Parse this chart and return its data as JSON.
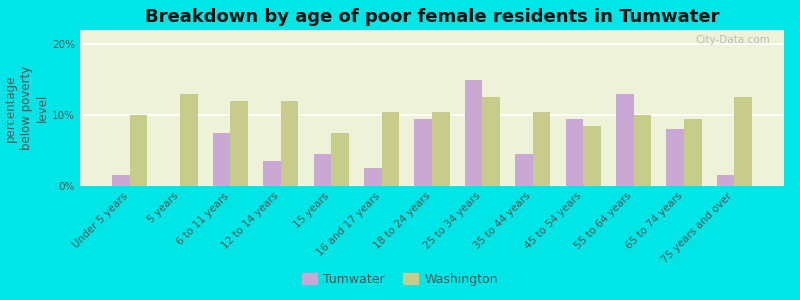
{
  "title": "Breakdown by age of poor female residents in Tumwater",
  "ylabel": "percentage\nbelow poverty\nlevel",
  "categories": [
    "Under 5 years",
    "5 years",
    "6 to 11 years",
    "12 to 14 years",
    "15 years",
    "16 and 17 years",
    "18 to 24 years",
    "25 to 34 years",
    "35 to 44 years",
    "45 to 54 years",
    "55 to 64 years",
    "65 to 74 years",
    "75 years and over"
  ],
  "tumwater": [
    1.5,
    0,
    7.5,
    3.5,
    4.5,
    2.5,
    9.5,
    15.0,
    4.5,
    9.5,
    13.0,
    8.0,
    1.5
  ],
  "washington": [
    10.0,
    13.0,
    12.0,
    12.0,
    7.5,
    10.5,
    10.5,
    12.5,
    10.5,
    8.5,
    10.0,
    9.5,
    12.5
  ],
  "tumwater_color": "#c9a8d4",
  "washington_color": "#c8cc8a",
  "bg_outer": "#00e5e5",
  "plot_bg": "#eef2d8",
  "ylim": [
    0,
    22
  ],
  "yticks": [
    0,
    10,
    20
  ],
  "ytick_labels": [
    "0%",
    "10%",
    "20%"
  ],
  "bar_width": 0.35,
  "title_fontsize": 13,
  "axis_label_fontsize": 8.5,
  "tick_fontsize": 7.5,
  "legend_fontsize": 9
}
